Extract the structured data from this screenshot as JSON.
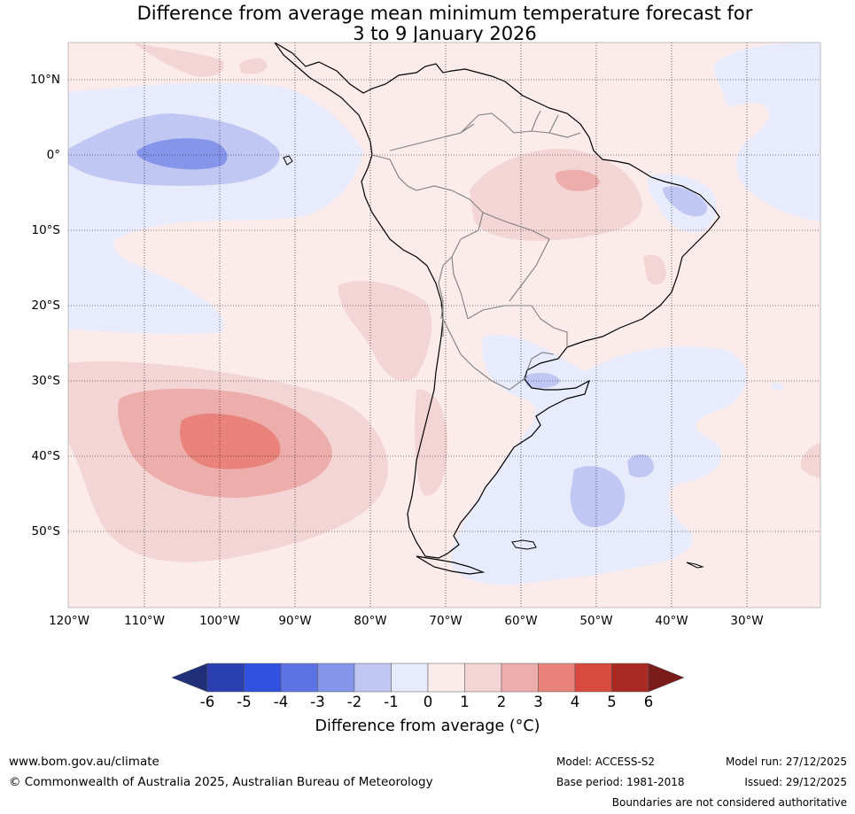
{
  "title": {
    "line1": "Difference from average mean minimum temperature forecast for",
    "line2": "3 to 9 January 2026"
  },
  "map": {
    "region": "South America and adjacent oceans",
    "lat_labels": [
      "10°N",
      "0°",
      "10°S",
      "20°S",
      "30°S",
      "40°S",
      "50°S"
    ],
    "lon_labels": [
      "120°W",
      "110°W",
      "100°W",
      "90°W",
      "80°W",
      "70°W",
      "60°W",
      "50°W",
      "40°W",
      "30°W"
    ]
  },
  "colorbar": {
    "ticks": [
      "-6",
      "-5",
      "-4",
      "-3",
      "-2",
      "-1",
      "0",
      "1",
      "2",
      "3",
      "4",
      "5",
      "6"
    ],
    "colors": [
      "#1f2f7a",
      "#2a40b0",
      "#3151e0",
      "#5e73e3",
      "#8596ea",
      "#c0c7f2",
      "#e8ebfb",
      "#fbebeb",
      "#f4d5d5",
      "#ecadab",
      "#e8827b",
      "#d94a3e",
      "#a82a22",
      "#7a1d1a"
    ],
    "label": "Difference from average ($^\\circ$C)",
    "label_display": "Difference from average (°C)"
  },
  "footer": {
    "website": "www.bom.gov.au/climate",
    "copyright": "© Commonwealth of Australia 2025, Australian Bureau of Meteorology",
    "model": "Model: ACCESS-S2",
    "base_period": "Base period: 1981-2018",
    "model_run": "Model run: 27/12/2025",
    "issued": "Issued: 29/12/2025",
    "disclaimer": "Boundaries are not considered authoritative"
  }
}
